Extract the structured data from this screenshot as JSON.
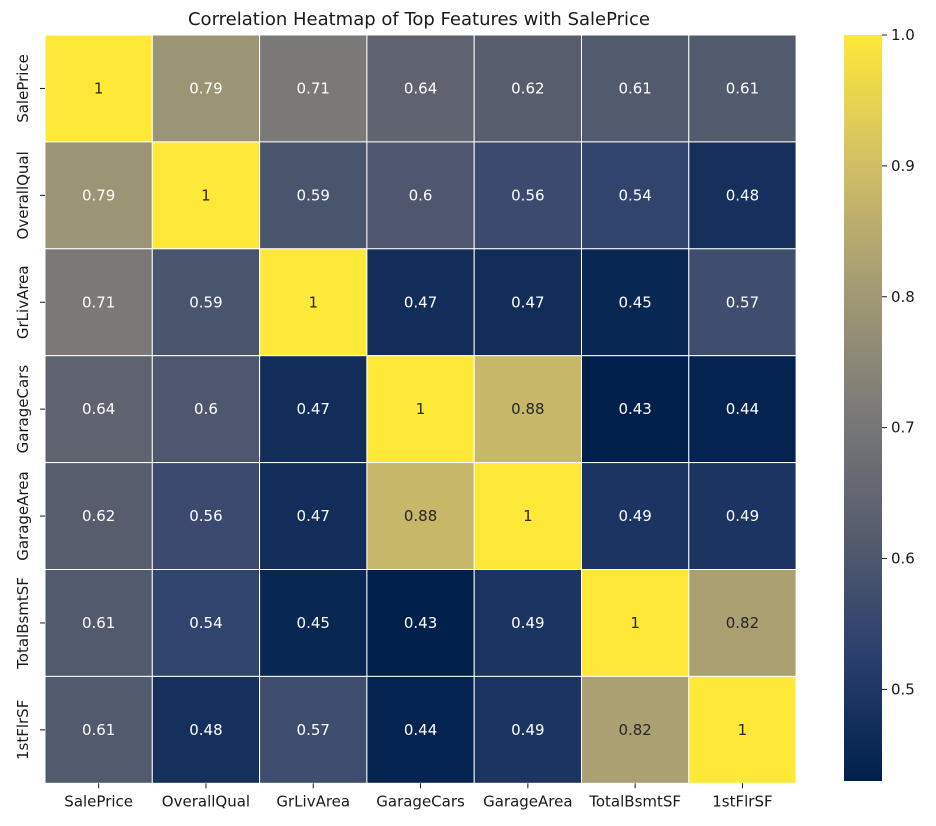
{
  "chart_data": {
    "type": "heatmap",
    "title": "Correlation Heatmap of Top Features with SalePrice",
    "x_labels": [
      "SalePrice",
      "OverallQual",
      "GrLivArea",
      "GarageCars",
      "GarageArea",
      "TotalBsmtSF",
      "1stFlrSF"
    ],
    "y_labels": [
      "SalePrice",
      "OverallQual",
      "GrLivArea",
      "GarageCars",
      "GarageArea",
      "TotalBsmtSF",
      "1stFlrSF"
    ],
    "values": [
      [
        1,
        0.79,
        0.71,
        0.64,
        0.62,
        0.61,
        0.61
      ],
      [
        0.79,
        1,
        0.59,
        0.6,
        0.56,
        0.54,
        0.48
      ],
      [
        0.71,
        0.59,
        1,
        0.47,
        0.47,
        0.45,
        0.57
      ],
      [
        0.64,
        0.6,
        0.47,
        1,
        0.88,
        0.43,
        0.44
      ],
      [
        0.62,
        0.56,
        0.47,
        0.88,
        1,
        0.49,
        0.49
      ],
      [
        0.61,
        0.54,
        0.45,
        0.43,
        0.49,
        1,
        0.82
      ],
      [
        0.61,
        0.48,
        0.57,
        0.44,
        0.49,
        0.82,
        1
      ]
    ],
    "cell_labels": [
      [
        "1",
        "0.79",
        "0.71",
        "0.64",
        "0.62",
        "0.61",
        "0.61"
      ],
      [
        "0.79",
        "1",
        "0.59",
        "0.6",
        "0.56",
        "0.54",
        "0.48"
      ],
      [
        "0.71",
        "0.59",
        "1",
        "0.47",
        "0.47",
        "0.45",
        "0.57"
      ],
      [
        "0.64",
        "0.6",
        "0.47",
        "1",
        "0.88",
        "0.43",
        "0.44"
      ],
      [
        "0.62",
        "0.56",
        "0.47",
        "0.88",
        "1",
        "0.49",
        "0.49"
      ],
      [
        "0.61",
        "0.54",
        "0.45",
        "0.43",
        "0.49",
        "1",
        "0.82"
      ],
      [
        "0.61",
        "0.48",
        "0.57",
        "0.44",
        "0.49",
        "0.82",
        "1"
      ]
    ],
    "colormap": "cividis",
    "colormap_stops": [
      "#00204c",
      "#2a3f6e",
      "#575d6d",
      "#7c7b78",
      "#a59c74",
      "#d3c164",
      "#fee838"
    ],
    "vmin": 0.43,
    "vmax": 1.0,
    "colorbar_ticks": [
      0.5,
      0.6,
      0.7,
      0.8,
      0.9,
      1.0
    ],
    "colorbar_tick_labels": [
      "0.5",
      "0.6",
      "0.7",
      "0.8",
      "0.9",
      "1.0"
    ],
    "colorbar_placement": "right",
    "grid": true,
    "grid_color": "#ffffff"
  }
}
